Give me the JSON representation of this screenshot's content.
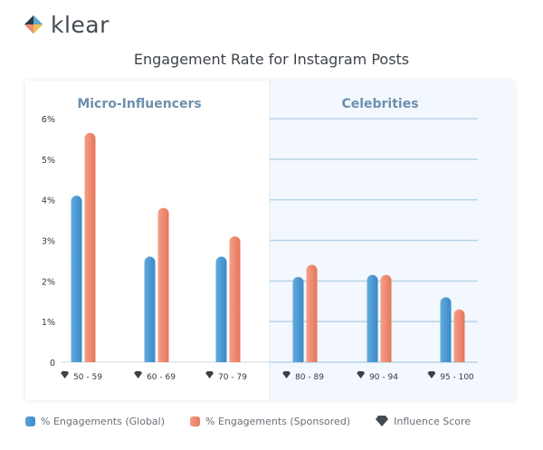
{
  "brand": {
    "name": "klear"
  },
  "chart_data": {
    "type": "bar",
    "title": "Engagement Rate for Instagram Posts",
    "groups": [
      {
        "label": "Micro-Influencers",
        "categories": [
          "50 - 59",
          "60 - 69",
          "70 - 79"
        ]
      },
      {
        "label": "Celebrities",
        "categories": [
          "80 - 89",
          "90 - 94",
          "95 - 100"
        ]
      }
    ],
    "categories": [
      "50 - 59",
      "60 - 69",
      "70 - 79",
      "80 - 89",
      "90 - 94",
      "95 - 100"
    ],
    "series": [
      {
        "name": "% Engagements (Global)",
        "values": [
          4.1,
          2.6,
          2.6,
          2.1,
          2.15,
          1.6
        ]
      },
      {
        "name": "% Engagements (Sponsored)",
        "values": [
          5.65,
          3.8,
          3.1,
          2.4,
          2.15,
          1.3
        ]
      }
    ],
    "y_ticks": [
      "0",
      "1%",
      "2%",
      "3%",
      "4%",
      "5%",
      "6%"
    ],
    "ylim": [
      0,
      6
    ],
    "grid": true,
    "legend_position": "bottom-left",
    "category_icon": "diamond-icon",
    "colors": {
      "global": "#4a98d2",
      "sponsored": "#ec8a6f",
      "highlight_band": "#f2f8fd",
      "gridline": "#b8d3e6",
      "group_label": "#6d8fae"
    }
  },
  "legend": {
    "items": [
      {
        "label": "% Engagements (Global)"
      },
      {
        "label": "% Engagements (Sponsored)"
      },
      {
        "label": "Influence Score",
        "icon": "diamond-icon"
      }
    ]
  }
}
